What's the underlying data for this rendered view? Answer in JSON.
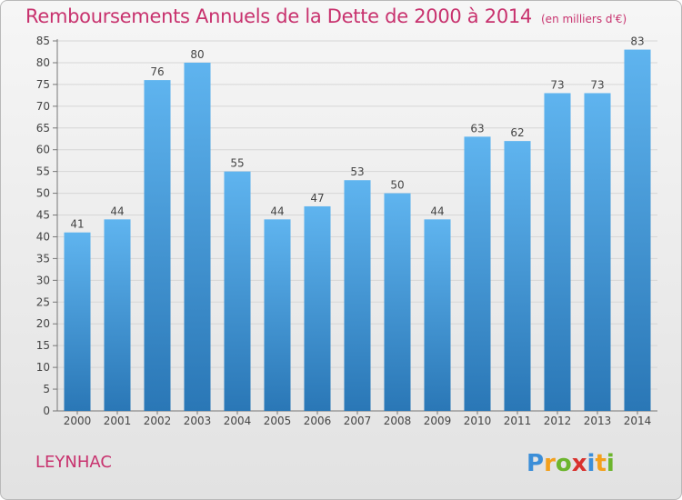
{
  "title": "Remboursements Annuels de la Dette de 2000 à 2014",
  "unit_note": "(en milliers d'€)",
  "commune": "LEYNHAC",
  "brand": "Proxiti",
  "colors": {
    "title": "#c8326e",
    "bar_top": "#5fb4ef",
    "bar_bottom": "#2a77b6"
  },
  "chart_data": {
    "type": "bar",
    "categories": [
      "2000",
      "2001",
      "2002",
      "2003",
      "2004",
      "2005",
      "2006",
      "2007",
      "2008",
      "2009",
      "2010",
      "2011",
      "2012",
      "2013",
      "2014"
    ],
    "values": [
      41,
      44,
      76,
      80,
      55,
      44,
      47,
      53,
      50,
      44,
      63,
      62,
      73,
      73,
      83
    ],
    "ylim": [
      0,
      85
    ],
    "yticks": [
      0,
      5,
      10,
      15,
      20,
      25,
      30,
      35,
      40,
      45,
      50,
      55,
      60,
      65,
      70,
      75,
      80,
      85
    ],
    "grid": true,
    "xlabel": "",
    "ylabel": ""
  }
}
